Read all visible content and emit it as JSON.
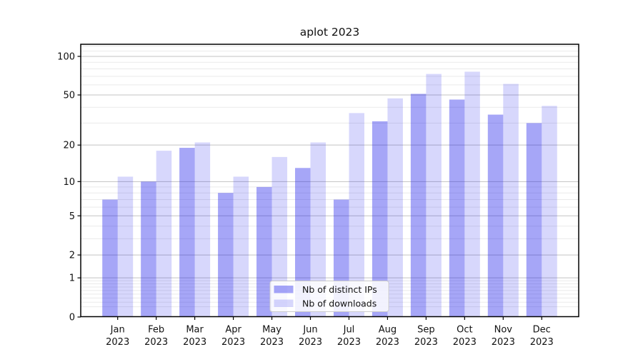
{
  "chart_data": {
    "type": "bar",
    "title": "aplot 2023",
    "year_label": "2023",
    "categories": [
      "Jan",
      "Feb",
      "Mar",
      "Apr",
      "May",
      "Jun",
      "Jul",
      "Aug",
      "Sep",
      "Oct",
      "Nov",
      "Dec"
    ],
    "series": [
      {
        "name": "Nb of distinct IPs",
        "slug": "distinct-ips",
        "color": "rgba(20,20,235,0.38)",
        "values": [
          7,
          10,
          19,
          8,
          9,
          13,
          7,
          31,
          51,
          46,
          35,
          30
        ]
      },
      {
        "name": "Nb of downloads",
        "slug": "downloads",
        "color": "rgba(20,20,235,0.17)",
        "values": [
          11,
          18,
          21,
          11,
          16,
          21,
          36,
          47,
          73,
          76,
          61,
          41
        ]
      }
    ],
    "yscale": "log1p",
    "yticks": [
      0,
      1,
      2,
      5,
      10,
      20,
      50,
      100
    ],
    "ytick_labels": [
      "0",
      "1",
      "2",
      "5",
      "10",
      "20",
      "50",
      "100"
    ],
    "minor_yticks": [
      0.2,
      0.3,
      0.4,
      0.5,
      0.6,
      0.7,
      0.8,
      0.9,
      3,
      4,
      6,
      7,
      8,
      9,
      30,
      40,
      60,
      70,
      80,
      90,
      110,
      120
    ],
    "ylim": [
      0,
      124
    ],
    "xlabel": "",
    "ylabel": "",
    "grid": true,
    "legend_position": "lower center",
    "colors": {
      "major_grid": "#c3c3c3",
      "minor_grid": "#eaeaea",
      "spine": "#000000",
      "legend_border": "#cccccc",
      "legend_bg": "rgba(255,255,255,0.85)"
    }
  }
}
